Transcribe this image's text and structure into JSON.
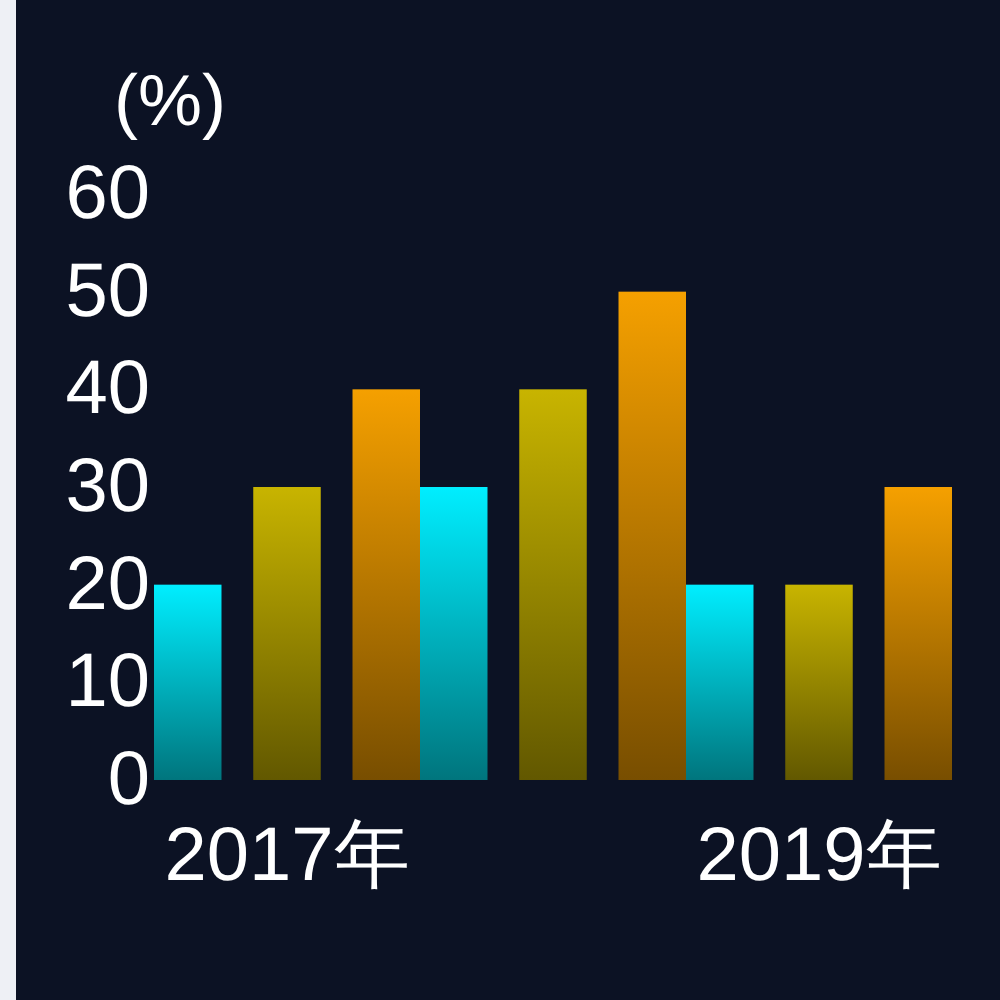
{
  "chart_data": {
    "type": "bar",
    "ylabel": "(%)",
    "categories": [
      "2017年",
      null,
      "2019年"
    ],
    "series": [
      {
        "color": "#00eeff",
        "values": [
          20,
          30,
          20
        ]
      },
      {
        "color": "#c8b400",
        "values": [
          30,
          40,
          20
        ]
      },
      {
        "color": "#f5a000",
        "values": [
          40,
          50,
          30
        ]
      }
    ],
    "ylim": [
      0,
      60
    ],
    "yticks": [
      0,
      10,
      20,
      30,
      40,
      50,
      60
    ]
  }
}
